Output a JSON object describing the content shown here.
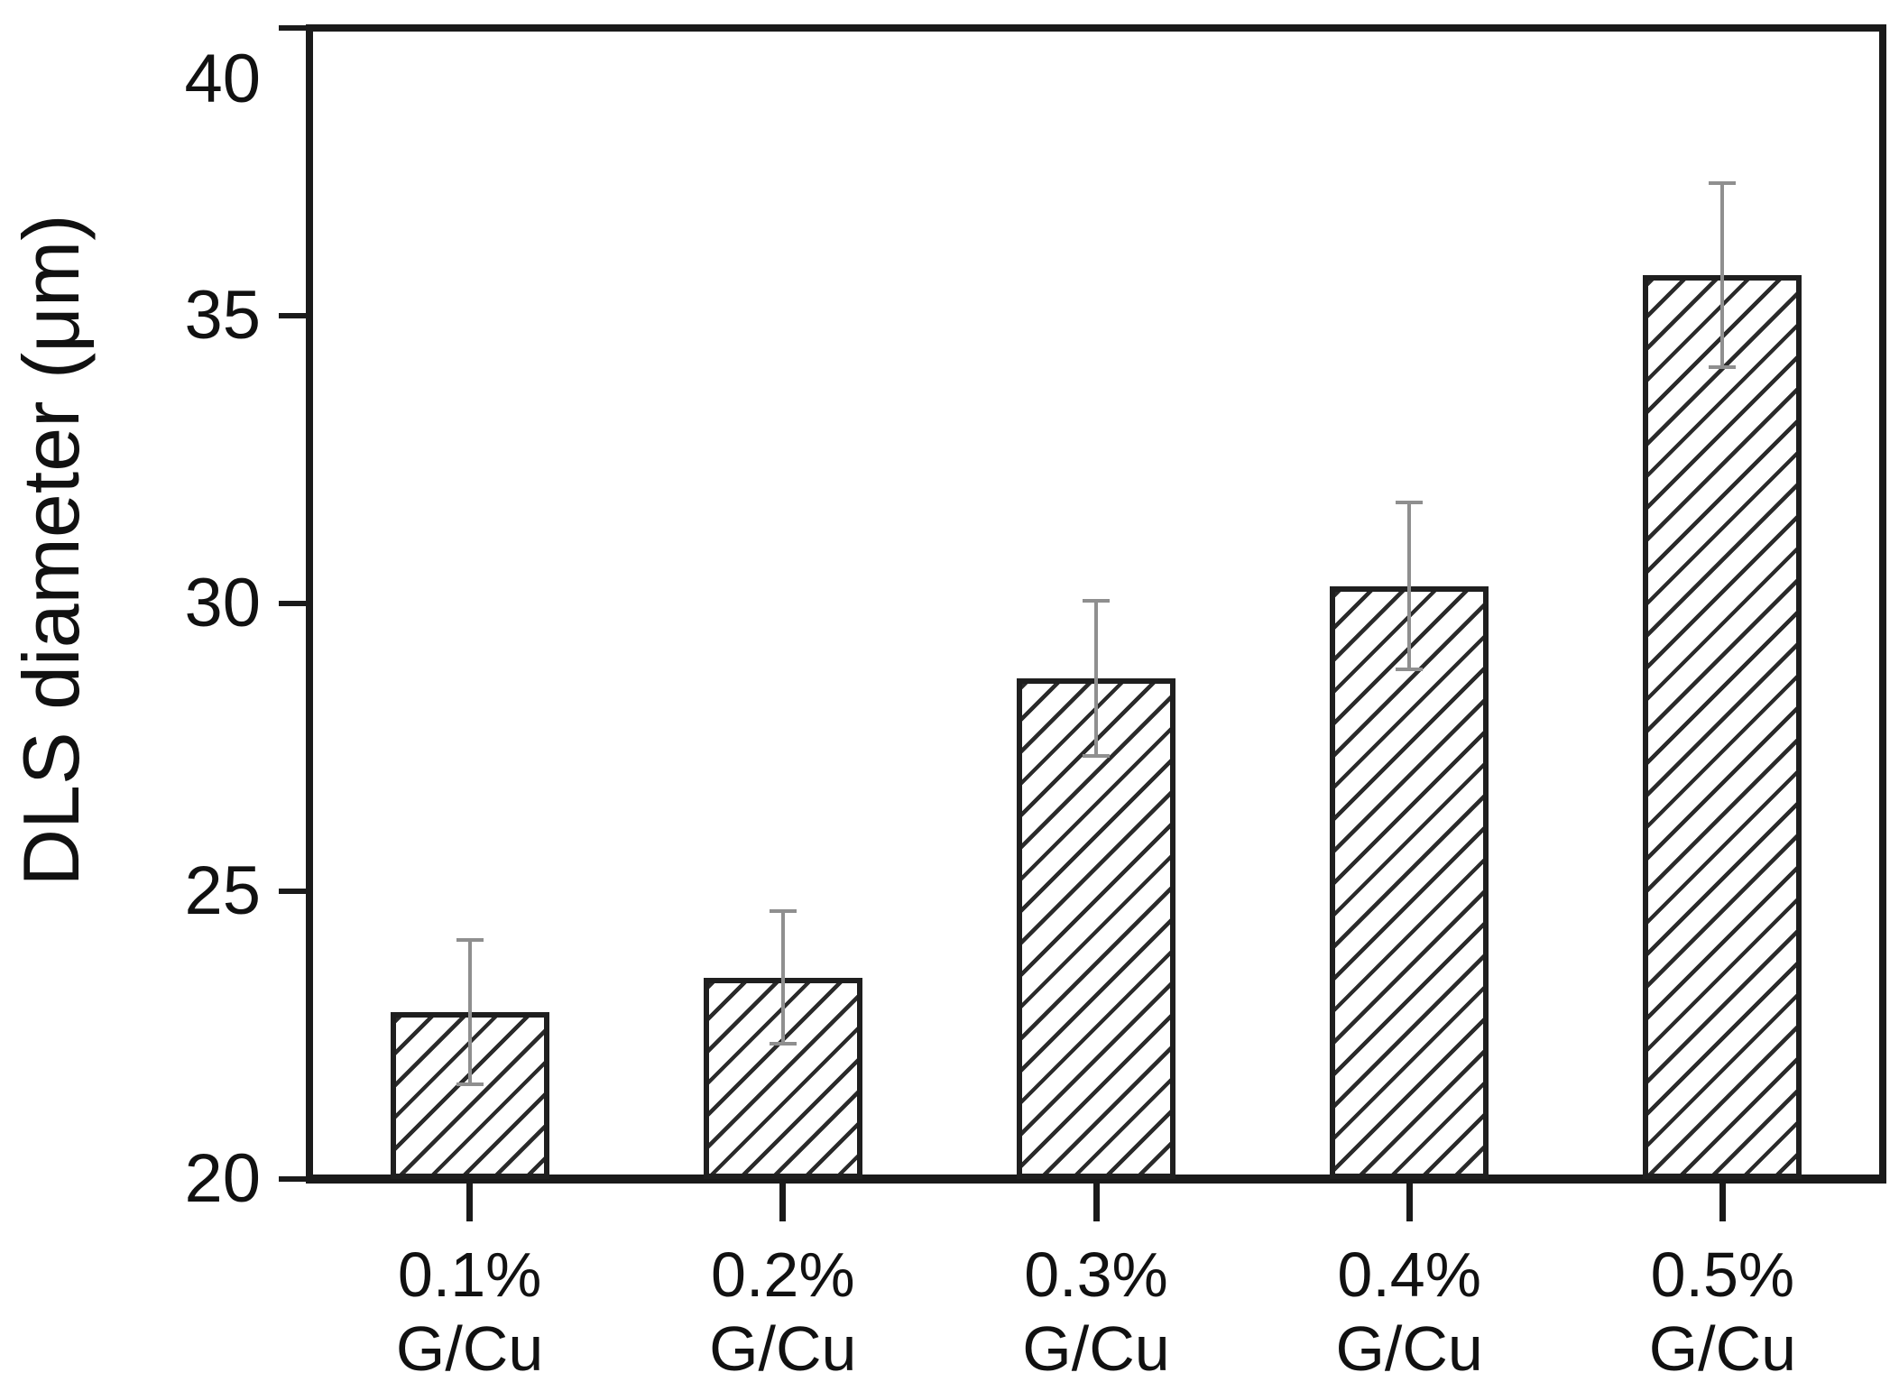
{
  "figure": {
    "title": "",
    "y_axis_title": "DLS diameter (μm)"
  },
  "chart_data": {
    "type": "bar",
    "title": "",
    "xlabel": "",
    "ylabel": "DLS diameter (μm)",
    "categories": [
      {
        "line1": "0.1%",
        "line2": "G/Cu"
      },
      {
        "line1": "0.2%",
        "line2": "G/Cu"
      },
      {
        "line1": "0.3%",
        "line2": "G/Cu"
      },
      {
        "line1": "0.4%",
        "line2": "G/Cu"
      },
      {
        "line1": "0.5%",
        "line2": "G/Cu"
      }
    ],
    "values": [
      22.9,
      23.5,
      28.7,
      30.3,
      35.7
    ],
    "errors": [
      1.25,
      1.15,
      1.35,
      1.45,
      1.6
    ],
    "ylim": [
      20,
      40
    ],
    "yticks": [
      20,
      25,
      30,
      35,
      40
    ],
    "grid": false,
    "legend": null,
    "bar_style": "diagonal-hatch",
    "colors": {
      "axis_line": "#1a1a1a",
      "bar_outline": "#1f1f1f",
      "hatch": "#2a2a2a",
      "error_bar": "#8f8f8f",
      "background": "#ffffff",
      "text": "#111111"
    }
  }
}
